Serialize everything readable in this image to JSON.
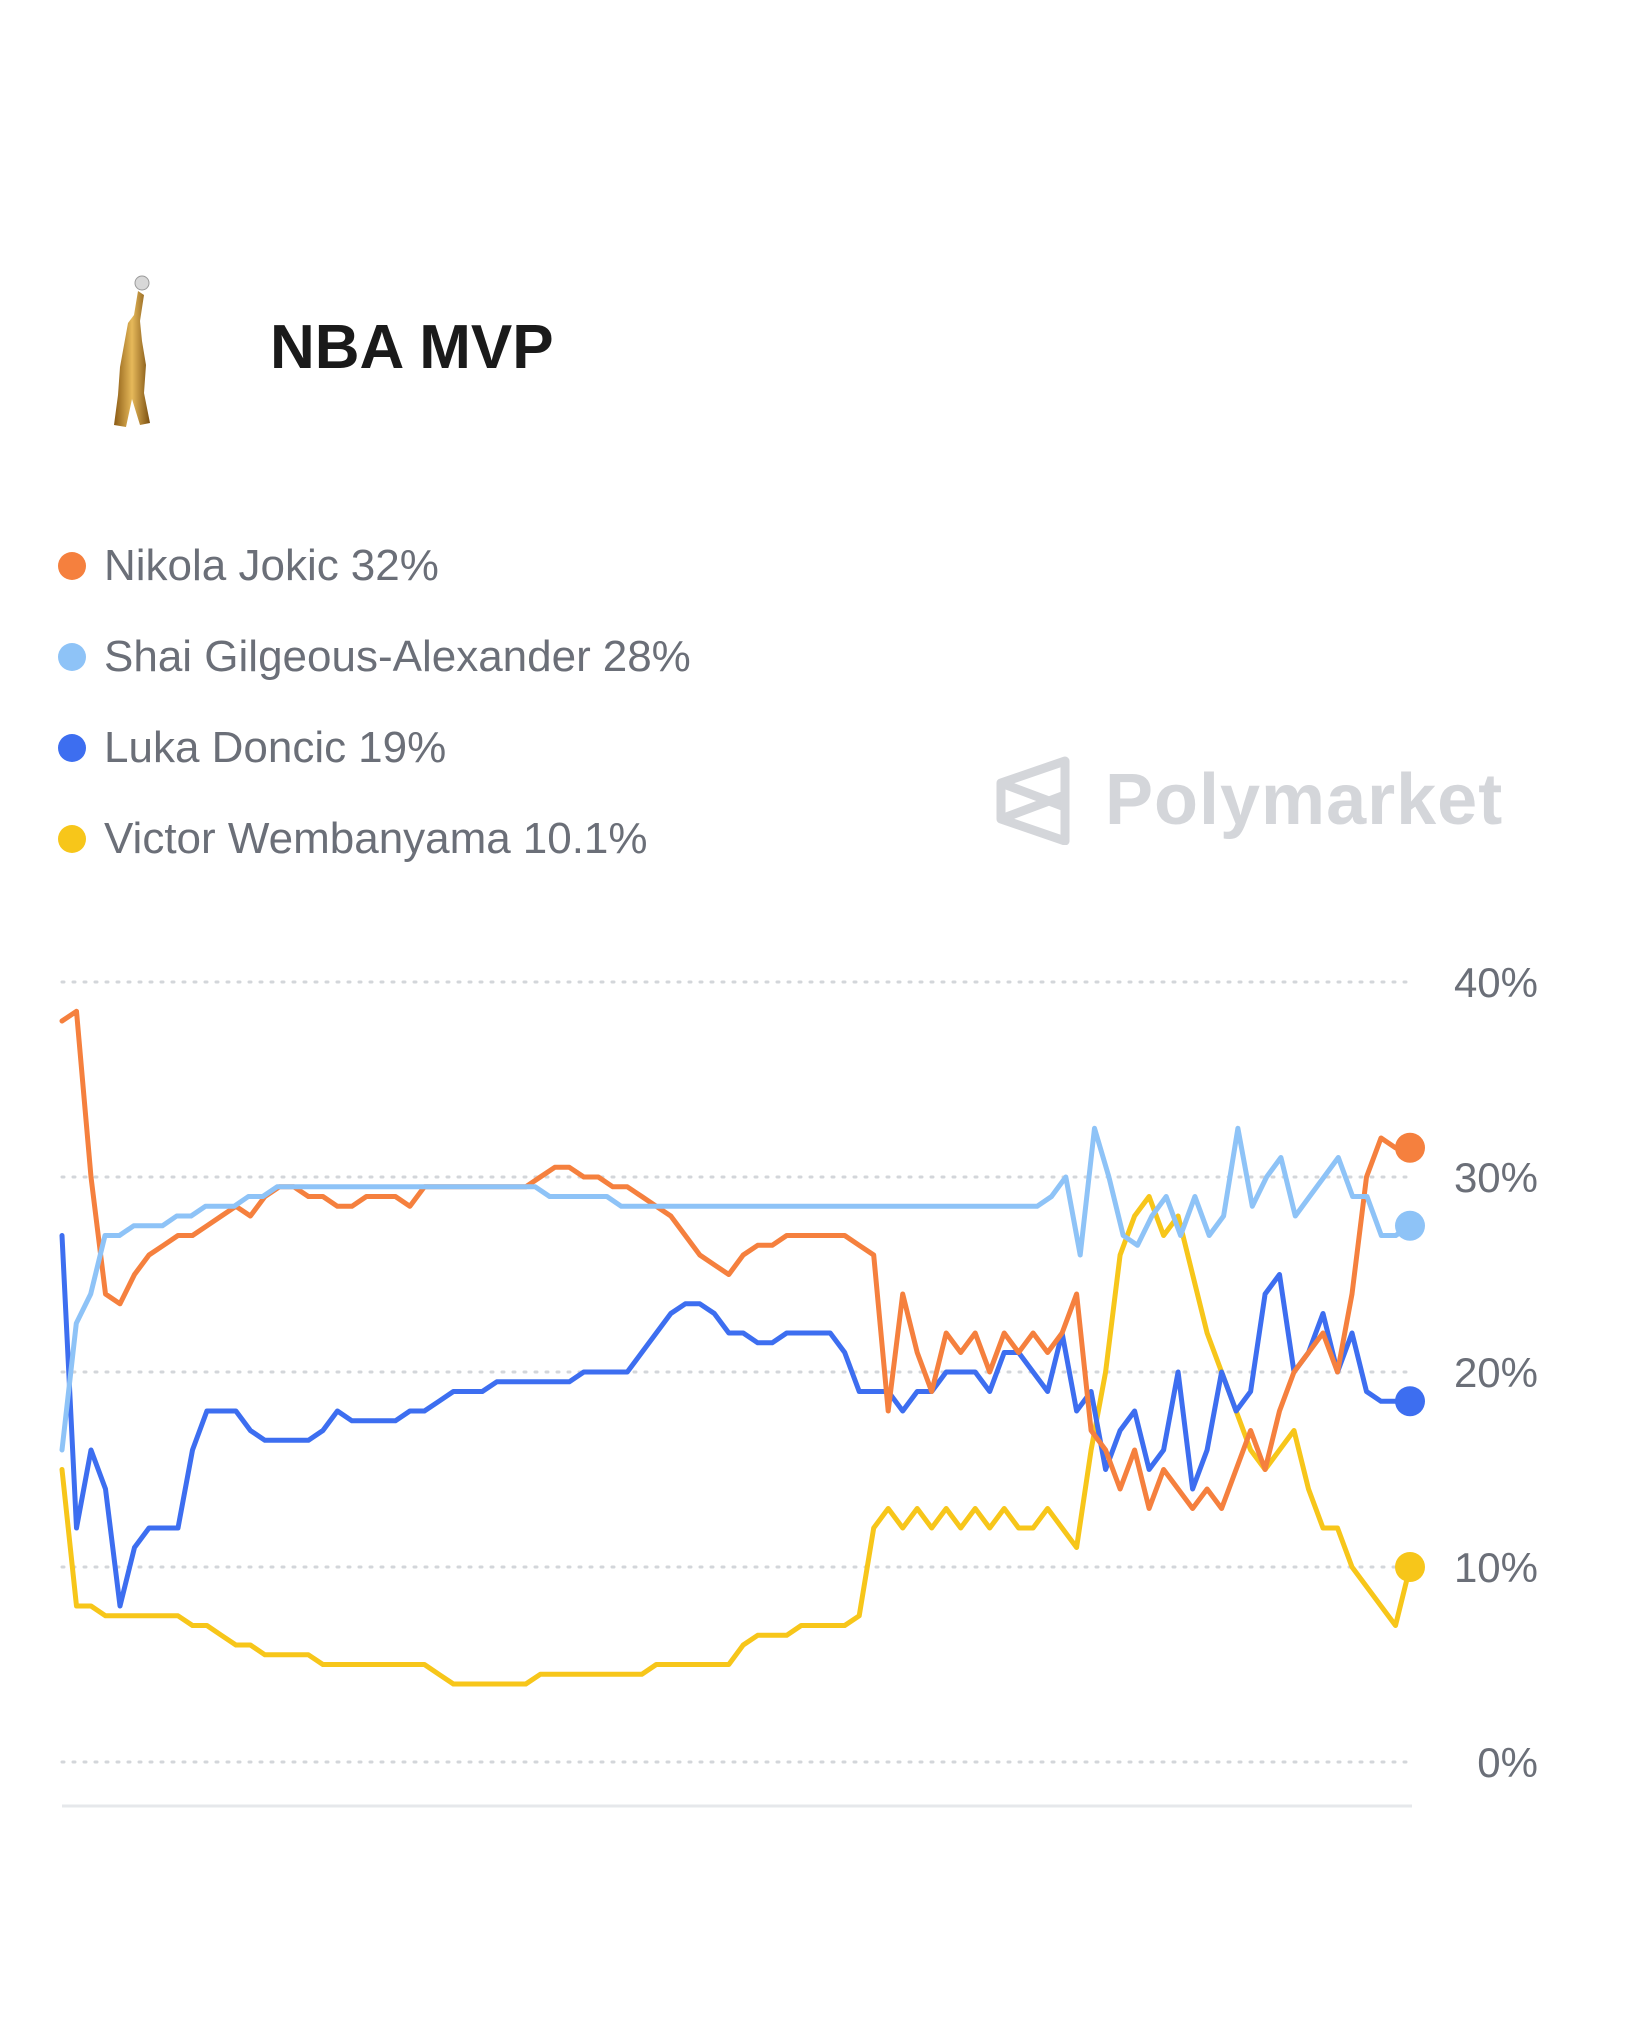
{
  "header": {
    "title": "NBA MVP",
    "icon": "trophy-icon"
  },
  "watermark": {
    "text": "Polymarket",
    "icon": "polymarket-logo-icon"
  },
  "chart_data": {
    "type": "line",
    "title": "",
    "ylim": [
      0,
      40
    ],
    "y_ticks": [
      "40%",
      "30%",
      "20%",
      "10%",
      "0%"
    ],
    "y_tick_values": [
      40,
      30,
      20,
      10,
      0
    ],
    "grid": true,
    "legend_placement": "top-left",
    "series": [
      {
        "name": "Nikola Jokic",
        "label": "32%",
        "color": "#f5803e",
        "values": [
          38,
          38.5,
          30,
          24,
          23.5,
          25,
          26,
          26.5,
          27,
          27,
          27.5,
          28,
          28.5,
          28,
          29,
          29.5,
          29.5,
          29,
          29,
          28.5,
          28.5,
          29,
          29,
          29,
          28.5,
          29.5,
          29.5,
          29.5,
          29.5,
          29.5,
          29.5,
          29.5,
          29.5,
          30,
          30.5,
          30.5,
          30,
          30,
          29.5,
          29.5,
          29,
          28.5,
          28,
          27,
          26,
          25.5,
          25,
          26,
          26.5,
          26.5,
          27,
          27,
          27,
          27,
          27,
          26.5,
          26,
          18,
          24,
          21,
          19,
          22,
          21,
          22,
          20,
          22,
          21,
          22,
          21,
          22,
          24,
          17,
          16,
          14,
          16,
          13,
          15,
          14,
          13,
          14,
          13,
          15,
          17,
          15,
          18,
          20,
          21,
          22,
          20,
          24,
          30,
          32,
          31.5,
          31.5
        ]
      },
      {
        "name": "Shai Gilgeous-Alexander",
        "label": "28%",
        "color": "#8ec3f7",
        "values": [
          16,
          22.5,
          24,
          27,
          27,
          27.5,
          27.5,
          27.5,
          28,
          28,
          28.5,
          28.5,
          28.5,
          29,
          29,
          29.5,
          29.5,
          29.5,
          29.5,
          29.5,
          29.5,
          29.5,
          29.5,
          29.5,
          29.5,
          29.5,
          29.5,
          29.5,
          29.5,
          29.5,
          29.5,
          29.5,
          29.5,
          29.5,
          29,
          29,
          29,
          29,
          29,
          28.5,
          28.5,
          28.5,
          28.5,
          28.5,
          28.5,
          28.5,
          28.5,
          28.5,
          28.5,
          28.5,
          28.5,
          28.5,
          28.5,
          28.5,
          28.5,
          28.5,
          28.5,
          28.5,
          28.5,
          28.5,
          28.5,
          28.5,
          28.5,
          28.5,
          28.5,
          28.5,
          28.5,
          28.5,
          28.5,
          29,
          30,
          26,
          32.5,
          30,
          27,
          26.5,
          28,
          29,
          27,
          29,
          27,
          28,
          32.5,
          28.5,
          30,
          31,
          28,
          29,
          30,
          31,
          29,
          29,
          27,
          27,
          27.5
        ]
      },
      {
        "name": "Luka Doncic",
        "label": "19%",
        "color": "#3d6ef0",
        "values": [
          27,
          12,
          16,
          14,
          8,
          11,
          12,
          12,
          12,
          16,
          18,
          18,
          18,
          17,
          16.5,
          16.5,
          16.5,
          16.5,
          17,
          18,
          17.5,
          17.5,
          17.5,
          17.5,
          18,
          18,
          18.5,
          19,
          19,
          19,
          19.5,
          19.5,
          19.5,
          19.5,
          19.5,
          19.5,
          20,
          20,
          20,
          20,
          21,
          22,
          23,
          23.5,
          23.5,
          23,
          22,
          22,
          21.5,
          21.5,
          22,
          22,
          22,
          22,
          21,
          19,
          19,
          19,
          18,
          19,
          19,
          20,
          20,
          20,
          19,
          21,
          21,
          20,
          19,
          22,
          18,
          19,
          15,
          17,
          18,
          15,
          16,
          20,
          14,
          16,
          20,
          18,
          19,
          24,
          25,
          20,
          21,
          23,
          20,
          22,
          19,
          18.5,
          18.5,
          18.5
        ]
      },
      {
        "name": "Victor Wembanyama",
        "label": "10.1%",
        "color": "#f7c61a",
        "values": [
          15,
          8,
          8,
          7.5,
          7.5,
          7.5,
          7.5,
          7.5,
          7.5,
          7,
          7,
          6.5,
          6,
          6,
          5.5,
          5.5,
          5.5,
          5.5,
          5,
          5,
          5,
          5,
          5,
          5,
          5,
          5,
          4.5,
          4,
          4,
          4,
          4,
          4,
          4,
          4.5,
          4.5,
          4.5,
          4.5,
          4.5,
          4.5,
          4.5,
          4.5,
          5,
          5,
          5,
          5,
          5,
          5,
          6,
          6.5,
          6.5,
          6.5,
          7,
          7,
          7,
          7,
          7.5,
          12,
          13,
          12,
          13,
          12,
          13,
          12,
          13,
          12,
          13,
          12,
          12,
          13,
          12,
          11,
          16,
          20,
          26,
          28,
          29,
          27,
          28,
          25,
          22,
          20,
          18,
          16,
          15,
          16,
          17,
          14,
          12,
          12,
          10,
          9,
          8,
          7,
          10
        ]
      }
    ]
  }
}
